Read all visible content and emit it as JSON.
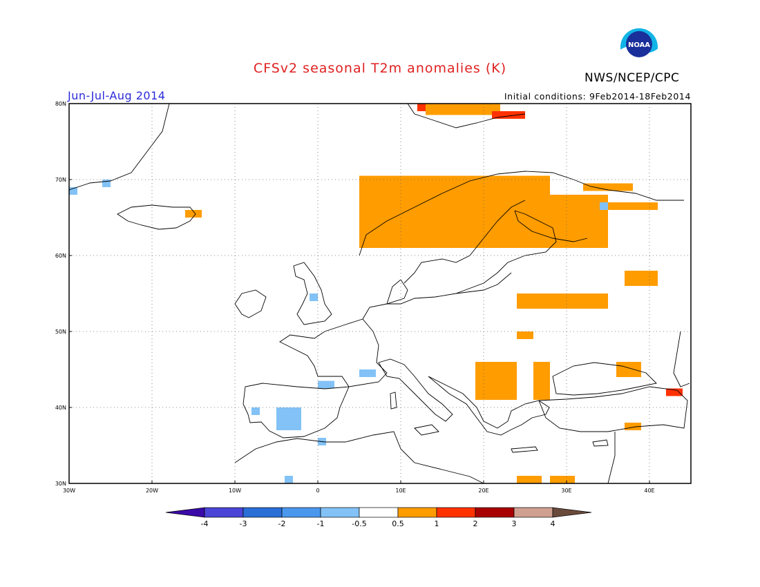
{
  "header": {
    "title": "CFSv2 seasonal T2m anomalies (K)",
    "org": "NWS/NCEP/CPC",
    "season": "Jun-Jul-Aug 2014",
    "initial_conditions": "Initial conditions: 9Feb2014-18Feb2014",
    "logo_text": "NOAA"
  },
  "axes": {
    "lon_labels": [
      "30W",
      "20W",
      "10W",
      "0",
      "10E",
      "20E",
      "30E",
      "40E"
    ],
    "lat_labels": [
      "30N",
      "40N",
      "50N",
      "60N",
      "70N",
      "80N"
    ]
  },
  "colorbar": {
    "labels": [
      "-4",
      "-3",
      "-2",
      "-1",
      "-0.5",
      "0.5",
      "1",
      "2",
      "3",
      "4"
    ],
    "colors": [
      "#3a0aa8",
      "#4a45d6",
      "#2a6fd6",
      "#4a97ee",
      "#82c2f6",
      "#ffffff",
      "#ff9c00",
      "#ff3200",
      "#a80000",
      "#cfa090",
      "#6a4a3a"
    ]
  },
  "map": {
    "extent": {
      "lon": [
        -30,
        45
      ],
      "lat": [
        30,
        80
      ]
    },
    "anomaly_cells": [
      {
        "lon": [
          5,
          28
        ],
        "lat": [
          61,
          70.5
        ],
        "value": 1
      },
      {
        "lon": [
          28,
          35
        ],
        "lat": [
          61,
          68
        ],
        "value": 1
      },
      {
        "lon": [
          35,
          41
        ],
        "lat": [
          66,
          67
        ],
        "value": 1
      },
      {
        "lon": [
          32,
          38
        ],
        "lat": [
          68.5,
          69.5
        ],
        "value": 1
      },
      {
        "lon": [
          13,
          22
        ],
        "lat": [
          78.5,
          80
        ],
        "value": 1
      },
      {
        "lon": [
          21,
          25
        ],
        "lat": [
          78,
          79
        ],
        "value": 2
      },
      {
        "lon": [
          12,
          13
        ],
        "lat": [
          79,
          80
        ],
        "value": 2
      },
      {
        "lon": [
          -16,
          -14
        ],
        "lat": [
          65,
          66
        ],
        "value": 1
      },
      {
        "lon": [
          24,
          35
        ],
        "lat": [
          53,
          55
        ],
        "value": 1
      },
      {
        "lon": [
          37,
          41
        ],
        "lat": [
          56,
          58
        ],
        "value": 1
      },
      {
        "lon": [
          19,
          24
        ],
        "lat": [
          41,
          46
        ],
        "value": 1
      },
      {
        "lon": [
          26,
          28
        ],
        "lat": [
          41,
          46
        ],
        "value": 1
      },
      {
        "lon": [
          36,
          39
        ],
        "lat": [
          44,
          46
        ],
        "value": 1
      },
      {
        "lon": [
          24,
          27
        ],
        "lat": [
          30,
          31
        ],
        "value": 1
      },
      {
        "lon": [
          28,
          31
        ],
        "lat": [
          30,
          31
        ],
        "value": 1
      },
      {
        "lon": [
          37,
          39
        ],
        "lat": [
          37,
          38
        ],
        "value": 1
      },
      {
        "lon": [
          24,
          26
        ],
        "lat": [
          49,
          50
        ],
        "value": 1
      },
      {
        "lon": [
          42,
          44
        ],
        "lat": [
          41.5,
          42.5
        ],
        "value": 2
      },
      {
        "lon": [
          -5,
          -2
        ],
        "lat": [
          37,
          40
        ],
        "value": -1
      },
      {
        "lon": [
          -8,
          -7
        ],
        "lat": [
          39,
          40
        ],
        "value": -1
      },
      {
        "lon": [
          -30,
          -29
        ],
        "lat": [
          68,
          69
        ],
        "value": -1
      },
      {
        "lon": [
          -26,
          -25
        ],
        "lat": [
          69,
          70
        ],
        "value": -1
      },
      {
        "lon": [
          -1,
          0
        ],
        "lat": [
          54,
          55
        ],
        "value": -1
      },
      {
        "lon": [
          0,
          2
        ],
        "lat": [
          42.5,
          43.5
        ],
        "value": -1
      },
      {
        "lon": [
          5,
          7
        ],
        "lat": [
          44,
          45
        ],
        "value": -1
      },
      {
        "lon": [
          0,
          1
        ],
        "lat": [
          35,
          36
        ],
        "value": -1
      },
      {
        "lon": [
          -4,
          -3
        ],
        "lat": [
          30,
          31
        ],
        "value": -1
      },
      {
        "lon": [
          34,
          35
        ],
        "lat": [
          66,
          67
        ],
        "value": -1
      }
    ]
  }
}
